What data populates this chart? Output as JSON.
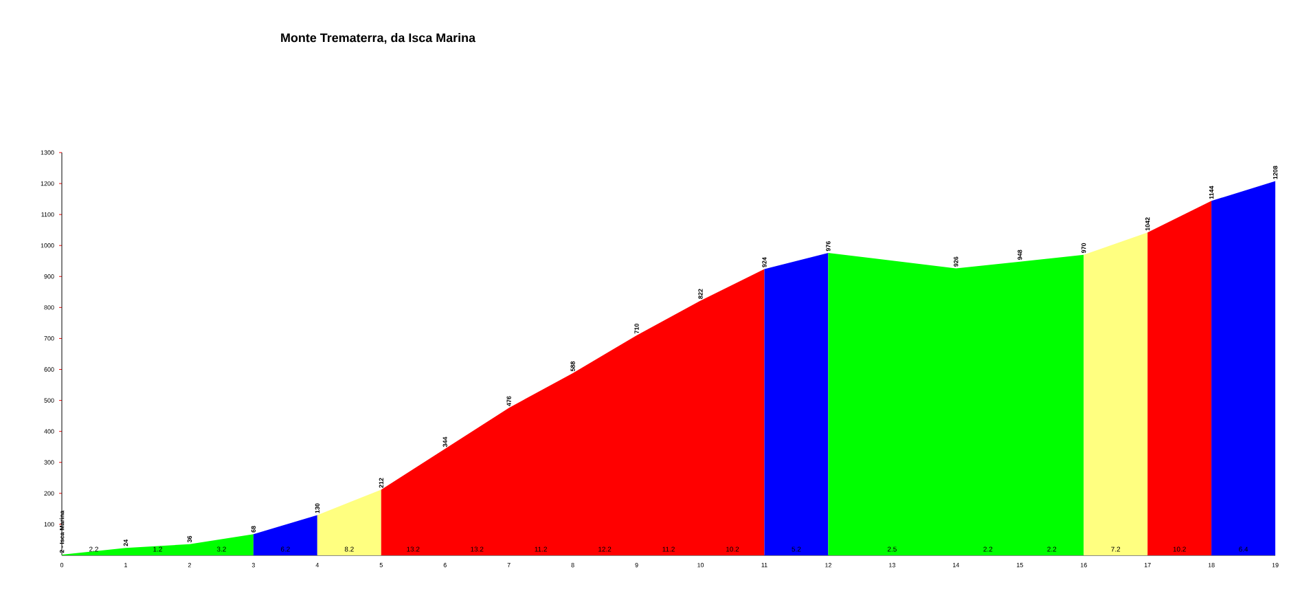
{
  "chart_data": {
    "type": "area",
    "title": "Monte Trematerra, da Isca Marina",
    "xlim": [
      0,
      19
    ],
    "ylim": [
      0,
      1300
    ],
    "xticks": [
      0,
      1,
      2,
      3,
      4,
      5,
      6,
      7,
      8,
      9,
      10,
      11,
      12,
      13,
      14,
      15,
      16,
      17,
      18,
      19
    ],
    "yticks": [
      100,
      200,
      300,
      400,
      500,
      600,
      700,
      800,
      900,
      1000,
      1100,
      1200,
      1300
    ],
    "series": [
      {
        "x": [
          0,
          1,
          2,
          3
        ],
        "values": [
          2,
          24,
          36,
          68
        ],
        "color": "#00ff00",
        "value_labels": [
          "2 - Isca Marina",
          "24",
          "36",
          "68"
        ]
      },
      {
        "x": [
          3,
          4
        ],
        "values": [
          68,
          130
        ],
        "color": "#0000ff",
        "value_labels": [
          null,
          "130"
        ]
      },
      {
        "x": [
          4,
          5
        ],
        "values": [
          130,
          212
        ],
        "color": "#ffff80",
        "value_labels": [
          null,
          "212"
        ]
      },
      {
        "x": [
          5,
          6,
          7,
          8,
          9,
          10,
          11
        ],
        "values": [
          212,
          344,
          476,
          588,
          710,
          822,
          924
        ],
        "color": "#ff0000",
        "value_labels": [
          null,
          "344",
          "476",
          "588",
          "710",
          "822",
          "924"
        ]
      },
      {
        "x": [
          11,
          12
        ],
        "values": [
          924,
          976
        ],
        "color": "#0000ff",
        "value_labels": [
          null,
          "976"
        ]
      },
      {
        "x": [
          12,
          14,
          15,
          16
        ],
        "values": [
          976,
          926,
          948,
          970
        ],
        "color": "#00ff00",
        "value_labels": [
          null,
          "926",
          "948",
          "970"
        ]
      },
      {
        "x": [
          16,
          17
        ],
        "values": [
          970,
          1042
        ],
        "color": "#ffff80",
        "value_labels": [
          null,
          "1042"
        ]
      },
      {
        "x": [
          17,
          18
        ],
        "values": [
          1042,
          1144
        ],
        "color": "#ff0000",
        "value_labels": [
          null,
          "1144"
        ]
      },
      {
        "x": [
          18,
          19
        ],
        "values": [
          1144,
          1208
        ],
        "color": "#0000ff",
        "value_labels": [
          null,
          "1208"
        ]
      }
    ],
    "annotations": [
      "2.2",
      "1.2",
      "3.2",
      "6.2",
      "8.2",
      "13.2",
      "13.2",
      "11.2",
      "12.2",
      "11.2",
      "10.2",
      "5.2",
      "2.5",
      "2.2",
      "2.2",
      "7.2",
      "10.2",
      "6.4"
    ]
  }
}
